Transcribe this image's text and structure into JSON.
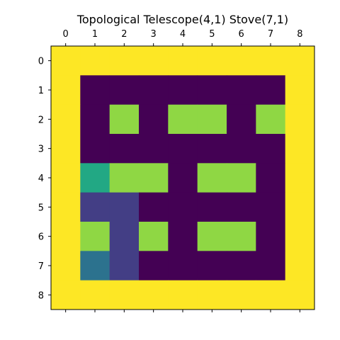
{
  "chart_data": {
    "type": "heatmap",
    "title": "Topological Telescope(4,1) Stove(7,1)",
    "x_ticks": [
      "0",
      "1",
      "2",
      "3",
      "4",
      "5",
      "6",
      "7",
      "8"
    ],
    "y_ticks": [
      "0",
      "1",
      "2",
      "3",
      "4",
      "5",
      "6",
      "7",
      "8"
    ],
    "grid": false,
    "x_axis_position": "top",
    "colors": {
      "0": "#440154",
      "1": "#433e85",
      "2": "#2c728e",
      "3": "#22a884",
      "4": "#8fd744",
      "5": "#fde725"
    },
    "cells": [
      [
        5,
        5,
        5,
        5,
        5,
        5,
        5,
        5,
        5
      ],
      [
        5,
        0,
        0,
        0,
        0,
        0,
        0,
        0,
        5
      ],
      [
        5,
        0,
        4,
        0,
        4,
        4,
        0,
        4,
        5
      ],
      [
        5,
        0,
        0,
        0,
        0,
        0,
        0,
        0,
        5
      ],
      [
        5,
        3,
        4,
        4,
        0,
        4,
        4,
        0,
        5
      ],
      [
        5,
        1,
        1,
        0,
        0,
        0,
        0,
        0,
        5
      ],
      [
        5,
        4,
        1,
        4,
        0,
        4,
        4,
        0,
        5
      ],
      [
        5,
        2,
        1,
        0,
        0,
        0,
        0,
        0,
        5
      ],
      [
        5,
        5,
        5,
        5,
        5,
        5,
        5,
        5,
        5
      ]
    ]
  }
}
